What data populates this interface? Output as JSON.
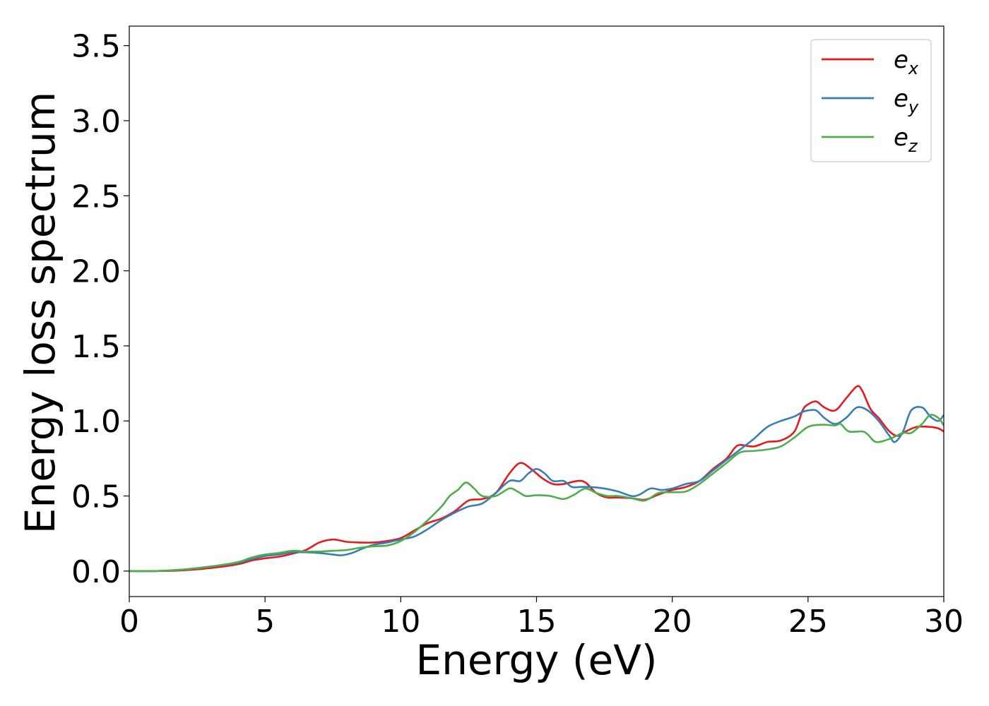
{
  "chart_data": {
    "type": "line",
    "title": "",
    "xlabel": "Energy (eV)",
    "ylabel": "Energy loss spectrum",
    "xlim": [
      0,
      30
    ],
    "ylim": [
      -0.17,
      3.63
    ],
    "xticks": [
      0,
      5,
      10,
      15,
      20,
      25,
      30
    ],
    "xtick_labels": [
      "0",
      "5",
      "10",
      "15",
      "20",
      "25",
      "30"
    ],
    "yticks": [
      0.0,
      0.5,
      1.0,
      1.5,
      2.0,
      2.5,
      3.0,
      3.5
    ],
    "ytick_labels": [
      "0.0",
      "0.5",
      "1.0",
      "1.5",
      "2.0",
      "2.5",
      "3.0",
      "3.5"
    ],
    "grid": false,
    "legend_position": "top-right",
    "series": [
      {
        "name": "e",
        "name_sub": "x",
        "color": "#e41a1c",
        "points": [
          [
            0,
            0.0
          ],
          [
            1,
            0.0
          ],
          [
            2,
            0.005
          ],
          [
            3,
            0.02
          ],
          [
            4,
            0.045
          ],
          [
            4.5,
            0.07
          ],
          [
            5,
            0.085
          ],
          [
            5.5,
            0.095
          ],
          [
            6,
            0.115
          ],
          [
            6.5,
            0.14
          ],
          [
            7,
            0.19
          ],
          [
            7.5,
            0.21
          ],
          [
            8,
            0.195
          ],
          [
            8.5,
            0.19
          ],
          [
            9,
            0.19
          ],
          [
            9.5,
            0.2
          ],
          [
            10,
            0.22
          ],
          [
            10.5,
            0.27
          ],
          [
            11,
            0.32
          ],
          [
            11.5,
            0.35
          ],
          [
            12,
            0.4
          ],
          [
            12.5,
            0.47
          ],
          [
            13,
            0.48
          ],
          [
            13.5,
            0.52
          ],
          [
            14,
            0.65
          ],
          [
            14.4,
            0.72
          ],
          [
            14.8,
            0.68
          ],
          [
            15.2,
            0.62
          ],
          [
            15.6,
            0.58
          ],
          [
            16,
            0.58
          ],
          [
            16.5,
            0.6
          ],
          [
            16.8,
            0.59
          ],
          [
            17.2,
            0.52
          ],
          [
            17.6,
            0.49
          ],
          [
            18,
            0.49
          ],
          [
            18.5,
            0.485
          ],
          [
            19,
            0.475
          ],
          [
            19.5,
            0.51
          ],
          [
            20,
            0.54
          ],
          [
            20.5,
            0.56
          ],
          [
            21,
            0.6
          ],
          [
            21.5,
            0.68
          ],
          [
            22,
            0.75
          ],
          [
            22.3,
            0.82
          ],
          [
            22.5,
            0.84
          ],
          [
            23,
            0.83
          ],
          [
            23.5,
            0.86
          ],
          [
            24,
            0.87
          ],
          [
            24.5,
            0.93
          ],
          [
            24.8,
            1.07
          ],
          [
            25,
            1.11
          ],
          [
            25.3,
            1.13
          ],
          [
            25.6,
            1.09
          ],
          [
            26,
            1.07
          ],
          [
            26.4,
            1.15
          ],
          [
            26.8,
            1.23
          ],
          [
            27,
            1.2
          ],
          [
            27.3,
            1.08
          ],
          [
            27.6,
            1.02
          ],
          [
            28,
            0.93
          ],
          [
            28.3,
            0.9
          ],
          [
            28.6,
            0.93
          ],
          [
            29,
            0.96
          ],
          [
            29.5,
            0.96
          ],
          [
            29.8,
            0.95
          ],
          [
            30,
            0.93
          ]
        ]
      },
      {
        "name": "e",
        "name_sub": "y",
        "color": "#377eb8",
        "points": [
          [
            0,
            0.0
          ],
          [
            1,
            0.0
          ],
          [
            2,
            0.01
          ],
          [
            3,
            0.03
          ],
          [
            4,
            0.055
          ],
          [
            4.5,
            0.08
          ],
          [
            5,
            0.1
          ],
          [
            5.5,
            0.11
          ],
          [
            6,
            0.125
          ],
          [
            6.5,
            0.125
          ],
          [
            7,
            0.12
          ],
          [
            7.5,
            0.11
          ],
          [
            7.8,
            0.105
          ],
          [
            8.2,
            0.12
          ],
          [
            8.6,
            0.15
          ],
          [
            9,
            0.175
          ],
          [
            9.5,
            0.19
          ],
          [
            10,
            0.21
          ],
          [
            10.5,
            0.23
          ],
          [
            11,
            0.28
          ],
          [
            11.5,
            0.34
          ],
          [
            12,
            0.39
          ],
          [
            12.5,
            0.43
          ],
          [
            13,
            0.45
          ],
          [
            13.5,
            0.52
          ],
          [
            14,
            0.6
          ],
          [
            14.4,
            0.6
          ],
          [
            14.7,
            0.65
          ],
          [
            15,
            0.68
          ],
          [
            15.3,
            0.65
          ],
          [
            15.6,
            0.6
          ],
          [
            16,
            0.6
          ],
          [
            16.3,
            0.56
          ],
          [
            16.6,
            0.56
          ],
          [
            17,
            0.56
          ],
          [
            17.5,
            0.55
          ],
          [
            18,
            0.53
          ],
          [
            18.5,
            0.5
          ],
          [
            18.8,
            0.51
          ],
          [
            19.2,
            0.55
          ],
          [
            19.6,
            0.54
          ],
          [
            20,
            0.55
          ],
          [
            20.5,
            0.58
          ],
          [
            21,
            0.6
          ],
          [
            21.5,
            0.67
          ],
          [
            22,
            0.74
          ],
          [
            22.5,
            0.81
          ],
          [
            23,
            0.88
          ],
          [
            23.5,
            0.96
          ],
          [
            24,
            1.0
          ],
          [
            24.5,
            1.03
          ],
          [
            24.8,
            1.06
          ],
          [
            25,
            1.07
          ],
          [
            25.3,
            1.07
          ],
          [
            25.6,
            1.02
          ],
          [
            26,
            0.98
          ],
          [
            26.4,
            1.02
          ],
          [
            26.8,
            1.09
          ],
          [
            27.2,
            1.07
          ],
          [
            27.6,
            1.0
          ],
          [
            28,
            0.9
          ],
          [
            28.2,
            0.86
          ],
          [
            28.5,
            0.93
          ],
          [
            28.8,
            1.07
          ],
          [
            29.2,
            1.09
          ],
          [
            29.5,
            1.03
          ],
          [
            29.8,
            1.0
          ],
          [
            30,
            1.04
          ]
        ]
      },
      {
        "name": "e",
        "name_sub": "z",
        "color": "#4daf4a",
        "points": [
          [
            0,
            0.0
          ],
          [
            1,
            0.0
          ],
          [
            2,
            0.01
          ],
          [
            3,
            0.03
          ],
          [
            4,
            0.06
          ],
          [
            4.5,
            0.09
          ],
          [
            5,
            0.11
          ],
          [
            5.5,
            0.12
          ],
          [
            6,
            0.135
          ],
          [
            6.5,
            0.13
          ],
          [
            7,
            0.13
          ],
          [
            7.5,
            0.135
          ],
          [
            8,
            0.14
          ],
          [
            8.5,
            0.155
          ],
          [
            9,
            0.165
          ],
          [
            9.5,
            0.17
          ],
          [
            10,
            0.2
          ],
          [
            10.5,
            0.26
          ],
          [
            11,
            0.34
          ],
          [
            11.5,
            0.43
          ],
          [
            11.8,
            0.5
          ],
          [
            12.1,
            0.54
          ],
          [
            12.4,
            0.59
          ],
          [
            12.7,
            0.55
          ],
          [
            13,
            0.5
          ],
          [
            13.5,
            0.5
          ],
          [
            14,
            0.55
          ],
          [
            14.3,
            0.53
          ],
          [
            14.6,
            0.5
          ],
          [
            15,
            0.505
          ],
          [
            15.5,
            0.5
          ],
          [
            16,
            0.48
          ],
          [
            16.4,
            0.51
          ],
          [
            16.8,
            0.55
          ],
          [
            17.2,
            0.52
          ],
          [
            17.6,
            0.5
          ],
          [
            18,
            0.5
          ],
          [
            18.5,
            0.485
          ],
          [
            19,
            0.47
          ],
          [
            19.5,
            0.52
          ],
          [
            20,
            0.525
          ],
          [
            20.5,
            0.53
          ],
          [
            21,
            0.58
          ],
          [
            21.5,
            0.65
          ],
          [
            22,
            0.72
          ],
          [
            22.5,
            0.79
          ],
          [
            23,
            0.8
          ],
          [
            23.5,
            0.81
          ],
          [
            24,
            0.83
          ],
          [
            24.5,
            0.89
          ],
          [
            25,
            0.96
          ],
          [
            25.5,
            0.975
          ],
          [
            26,
            0.97
          ],
          [
            26.2,
            0.98
          ],
          [
            26.5,
            0.93
          ],
          [
            27,
            0.93
          ],
          [
            27.2,
            0.91
          ],
          [
            27.5,
            0.86
          ],
          [
            28,
            0.88
          ],
          [
            28.5,
            0.92
          ],
          [
            28.8,
            0.92
          ],
          [
            29.2,
            0.98
          ],
          [
            29.5,
            1.04
          ],
          [
            29.8,
            1.02
          ],
          [
            30,
            0.97
          ]
        ]
      }
    ]
  }
}
